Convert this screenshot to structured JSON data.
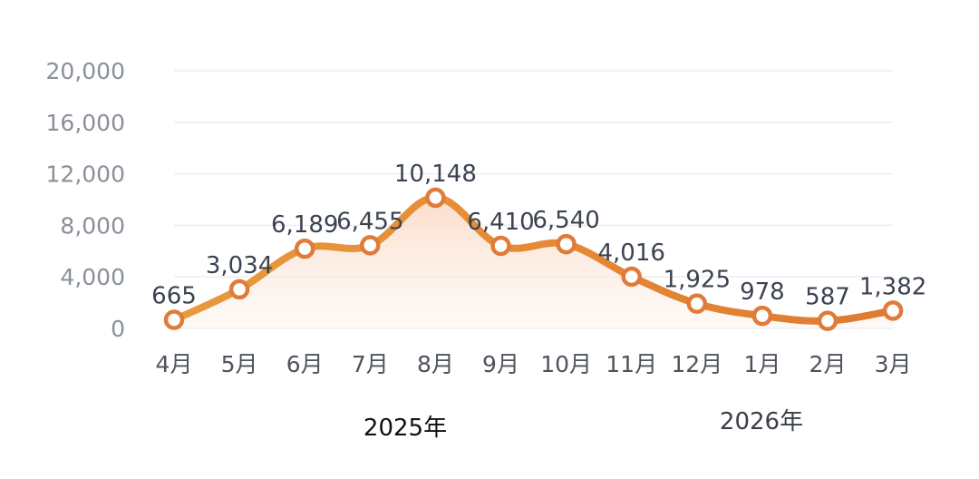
{
  "chart_data": {
    "type": "line",
    "categories": [
      "4月",
      "5月",
      "6月",
      "7月",
      "8月",
      "9月",
      "10月",
      "11月",
      "12月",
      "1月",
      "2月",
      "3月"
    ],
    "values": [
      665,
      3034,
      6189,
      6455,
      10148,
      6410,
      6540,
      4016,
      1925,
      978,
      587,
      1382
    ],
    "data_labels": [
      "665",
      "3,034",
      "6,189",
      "6,455",
      "10,148",
      "6,410",
      "6,540",
      "4,016",
      "1,925",
      "978",
      "587",
      "1,382"
    ],
    "yticks": [
      "0",
      "4,000",
      "8,000",
      "12,000",
      "16,000",
      "20,000"
    ],
    "ytick_values": [
      0,
      4000,
      8000,
      12000,
      16000,
      20000
    ],
    "ylim": [
      0,
      20000
    ],
    "year_labels": [
      "2025年",
      "2026年"
    ],
    "grid": true,
    "smooth": true,
    "area_fill": true,
    "colors": {
      "line": "#e8923a",
      "marker": "#e07b39",
      "area": "#fde9dc"
    }
  }
}
